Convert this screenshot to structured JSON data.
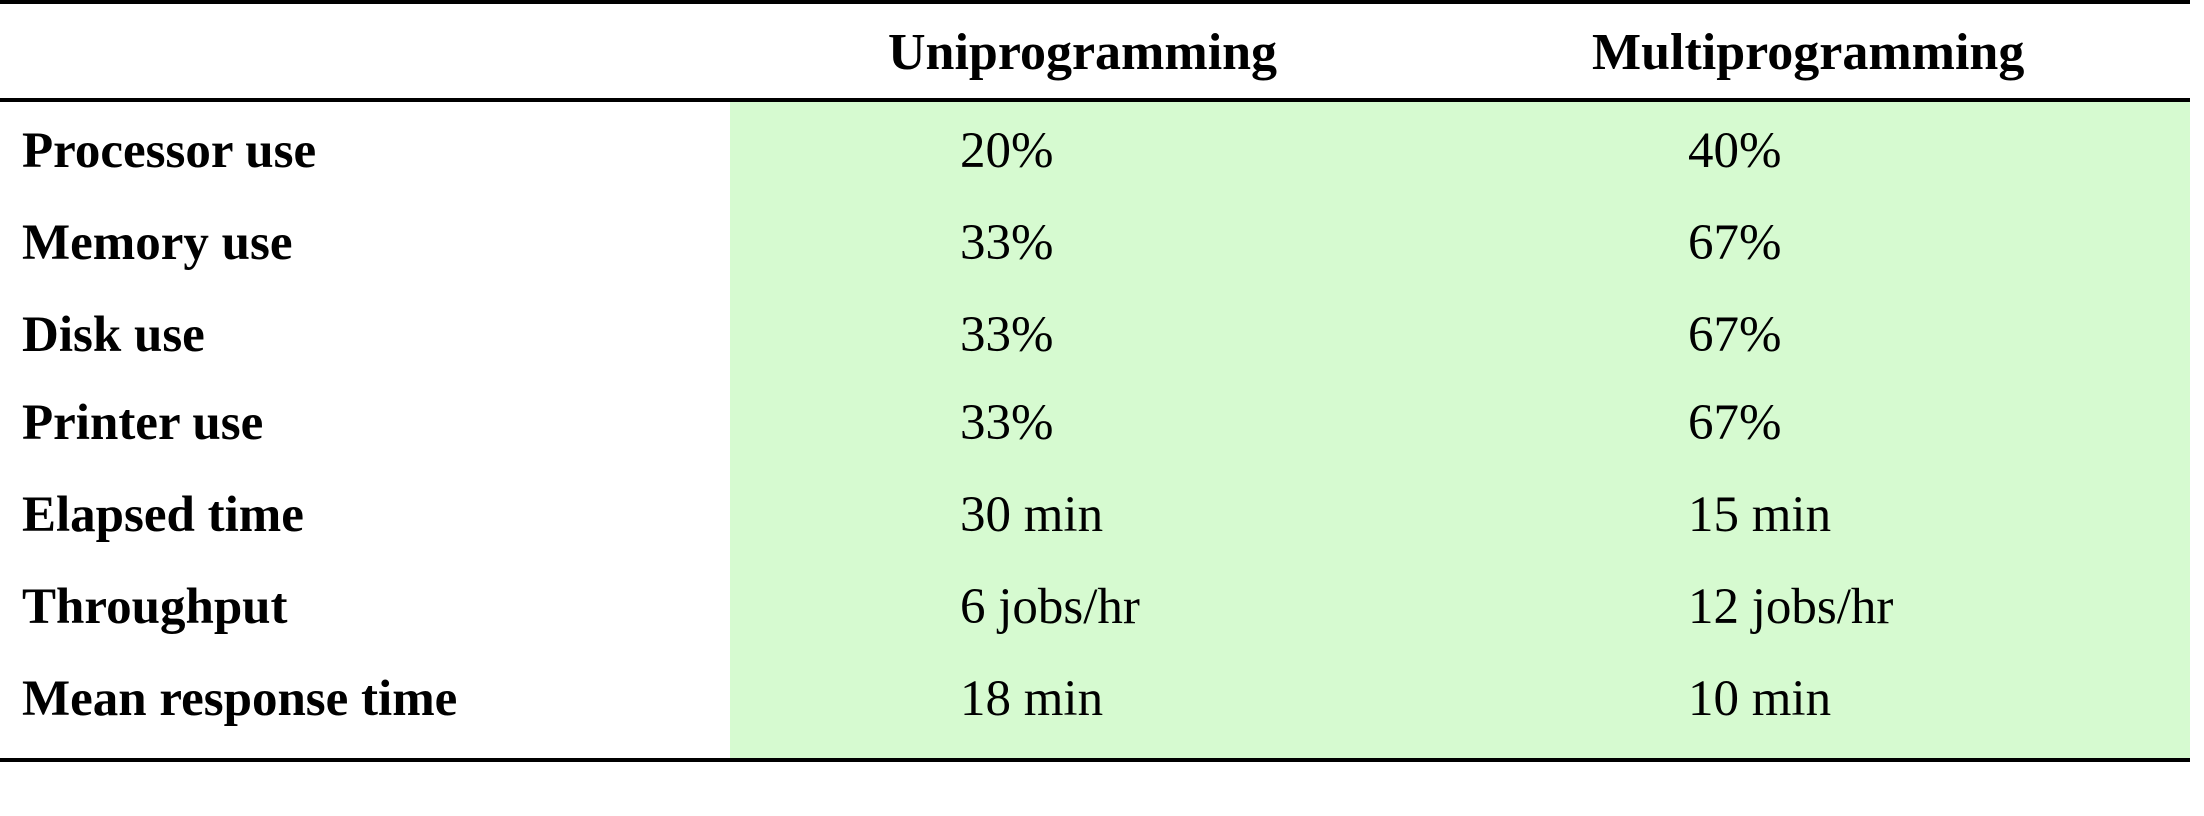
{
  "table": {
    "headers": {
      "label": "",
      "uniprogramming": "Uniprogramming",
      "multiprogramming": "Multiprogramming"
    },
    "rows": [
      {
        "label": "Processor use",
        "uniprogramming": "20%",
        "multiprogramming": "40%"
      },
      {
        "label": "Memory use",
        "uniprogramming": "33%",
        "multiprogramming": "67%"
      },
      {
        "label": "Disk use",
        "uniprogramming": "33%",
        "multiprogramming": "67%"
      },
      {
        "label": "Printer use",
        "uniprogramming": "33%",
        "multiprogramming": "67%"
      },
      {
        "label": "Elapsed time",
        "uniprogramming": "30 min",
        "multiprogramming": "15 min"
      },
      {
        "label": "Throughput",
        "uniprogramming": "6 jobs/hr",
        "multiprogramming": "12 jobs/hr"
      },
      {
        "label": "Mean response time",
        "uniprogramming": "18 min",
        "multiprogramming": "10 min"
      }
    ]
  },
  "colors": {
    "highlight": "#d6fad0",
    "rule": "#000000",
    "text": "#000000"
  }
}
